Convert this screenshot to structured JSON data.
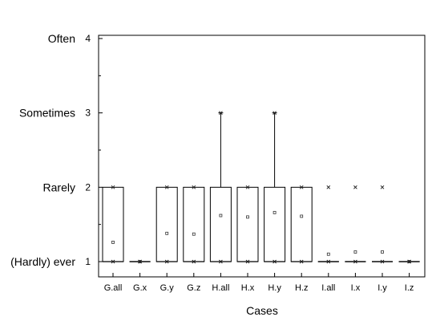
{
  "chart_data": {
    "type": "box",
    "xlabel": "Cases",
    "ylabel": "",
    "ylim": [
      1,
      4
    ],
    "y_ticks": [
      {
        "value": 1,
        "label": "1",
        "text": "(Hardly) ever"
      },
      {
        "value": 2,
        "label": "2",
        "text": "Rarely"
      },
      {
        "value": 3,
        "label": "3",
        "text": "Sometimes"
      },
      {
        "value": 4,
        "label": "4",
        "text": "Often"
      }
    ],
    "categories": [
      "G.all",
      "G.x",
      "G.y",
      "G.z",
      "H.all",
      "H.x",
      "H.y",
      "H.z",
      "I.all",
      "I.x",
      "I.y",
      "I.z"
    ],
    "boxes": [
      {
        "case": "G.all",
        "q1": 1,
        "median": 1,
        "q3": 2,
        "whisker_low": 1,
        "whisker_high": 2,
        "mean": 1.26,
        "min": 1,
        "max": 2
      },
      {
        "case": "G.x",
        "q1": 1,
        "median": 1,
        "q3": 1,
        "whisker_low": 1,
        "whisker_high": 1,
        "mean": 1.0,
        "min": 1,
        "max": 1
      },
      {
        "case": "G.y",
        "q1": 1,
        "median": 1,
        "q3": 2,
        "whisker_low": 1,
        "whisker_high": 2,
        "mean": 1.38,
        "min": 1,
        "max": 2
      },
      {
        "case": "G.z",
        "q1": 1,
        "median": 1,
        "q3": 2,
        "whisker_low": 1,
        "whisker_high": 2,
        "mean": 1.37,
        "min": 1,
        "max": 2
      },
      {
        "case": "H.all",
        "q1": 1,
        "median": 1,
        "q3": 2,
        "whisker_low": 1,
        "whisker_high": 3,
        "mean": 1.62,
        "min": 1,
        "max": 3
      },
      {
        "case": "H.x",
        "q1": 1,
        "median": 1,
        "q3": 2,
        "whisker_low": 1,
        "whisker_high": 2,
        "mean": 1.6,
        "min": 1,
        "max": 2
      },
      {
        "case": "H.y",
        "q1": 1,
        "median": 1,
        "q3": 2,
        "whisker_low": 1,
        "whisker_high": 3,
        "mean": 1.66,
        "min": 1,
        "max": 3
      },
      {
        "case": "H.z",
        "q1": 1,
        "median": 1,
        "q3": 2,
        "whisker_low": 1,
        "whisker_high": 2,
        "mean": 1.61,
        "min": 1,
        "max": 2
      },
      {
        "case": "I.all",
        "q1": 1,
        "median": 1,
        "q3": 1,
        "whisker_low": 1,
        "whisker_high": 1,
        "mean": 1.1,
        "min": 1,
        "max": 2
      },
      {
        "case": "I.x",
        "q1": 1,
        "median": 1,
        "q3": 1,
        "whisker_low": 1,
        "whisker_high": 1,
        "mean": 1.13,
        "min": 1,
        "max": 2
      },
      {
        "case": "I.y",
        "q1": 1,
        "median": 1,
        "q3": 1,
        "whisker_low": 1,
        "whisker_high": 1,
        "mean": 1.13,
        "min": 1,
        "max": 2
      },
      {
        "case": "I.z",
        "q1": 1,
        "median": 1,
        "q3": 1,
        "whisker_low": 1,
        "whisker_high": 1,
        "mean": 1.0,
        "min": 1,
        "max": 1
      }
    ],
    "grid": false,
    "legend": "none"
  }
}
